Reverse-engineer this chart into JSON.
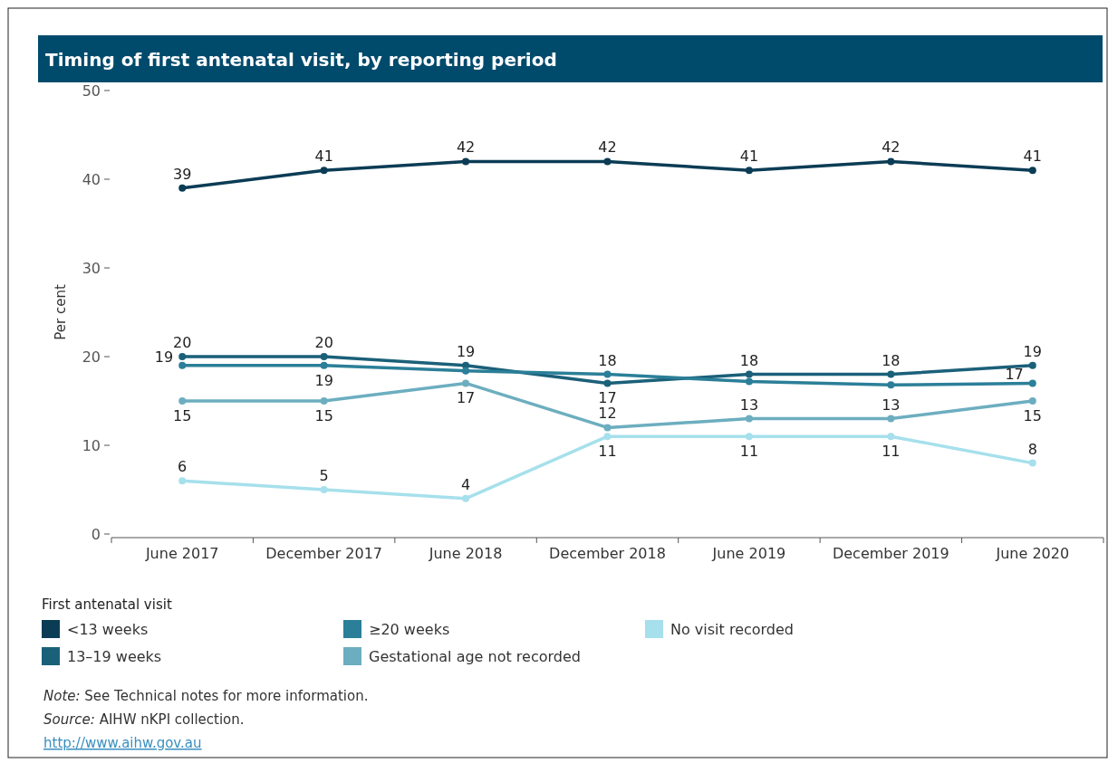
{
  "chart_data": {
    "type": "line",
    "title": "Timing of first antenatal visit, by reporting period",
    "ylabel": "Per cent",
    "legend_title": "First antenatal visit",
    "categories": [
      "June 2017",
      "December 2017",
      "June 2018",
      "December 2018",
      "June 2019",
      "December 2019",
      "June 2020"
    ],
    "ylim": [
      0,
      50
    ],
    "yticks": [
      0,
      10,
      20,
      30,
      40,
      50
    ],
    "marker": "circle",
    "legend": "bottom",
    "series": [
      {
        "name": "<13 weeks",
        "color": "#0b3c55",
        "values": [
          39,
          41,
          42,
          42,
          41,
          42,
          41
        ]
      },
      {
        "name": "13–19 weeks",
        "color": "#1b6079",
        "values": [
          20,
          20,
          19,
          17,
          18,
          18,
          19
        ]
      },
      {
        "name": "≥20 weeks",
        "color": "#2b7f98",
        "values": [
          19,
          19,
          18.4,
          18,
          17.2,
          16.8,
          17
        ],
        "value_labels": [
          "19",
          "19",
          null,
          "18",
          null,
          null,
          "17"
        ]
      },
      {
        "name": "Gestational age not recorded",
        "color": "#6caebf",
        "values": [
          15,
          15,
          17,
          12,
          13,
          13,
          15
        ]
      },
      {
        "name": "No visit recorded",
        "color": "#a6e0ec",
        "values": [
          6,
          5,
          4,
          11,
          11,
          11,
          8
        ]
      }
    ],
    "data_labels": true,
    "annotations": [
      "Note: See Technical notes for more information.",
      "Source: AIHW nKPI collection.",
      "http://www.aihw.gov.au"
    ]
  }
}
